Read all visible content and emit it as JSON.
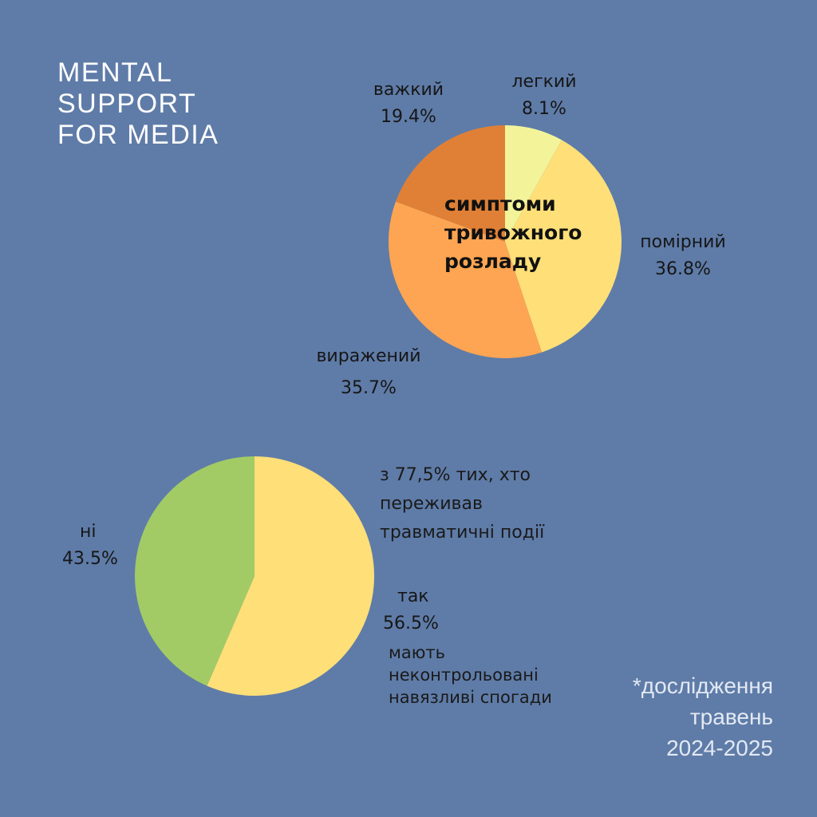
{
  "brand": {
    "line1": "MENTAL",
    "line2": "SUPPORT",
    "line3": "FOR MEDIA"
  },
  "chart_data": [
    {
      "type": "pie",
      "title": [
        "симптоми",
        "тривожного",
        "розладу"
      ],
      "slices": [
        {
          "label": "легкий",
          "value": 8.1,
          "display": "8.1%",
          "color": "#f3f49a"
        },
        {
          "label": "помірний",
          "value": 36.8,
          "display": "36.8%",
          "color": "#fedf78"
        },
        {
          "label": "виражений",
          "value": 35.7,
          "display": "35.7%",
          "color": "#fda552"
        },
        {
          "label": "важкий",
          "value": 19.4,
          "display": "19.4%",
          "color": "#e08036"
        }
      ]
    },
    {
      "type": "pie",
      "slices": [
        {
          "label": "так",
          "value": 56.5,
          "display": "56.5%",
          "color": "#fedf78"
        },
        {
          "label": "ні",
          "value": 43.5,
          "display": "43.5%",
          "color": "#a2cb66"
        }
      ],
      "annotation_top": [
        "з 77,5% тих, хто",
        "переживав",
        "травматичні події"
      ],
      "annotation_bottom": [
        "мають",
        "неконтрольовані",
        "навязливі спогади"
      ]
    }
  ],
  "footnote": {
    "line1": "*дослідження",
    "line2": "травень",
    "line3": "2024-2025"
  }
}
